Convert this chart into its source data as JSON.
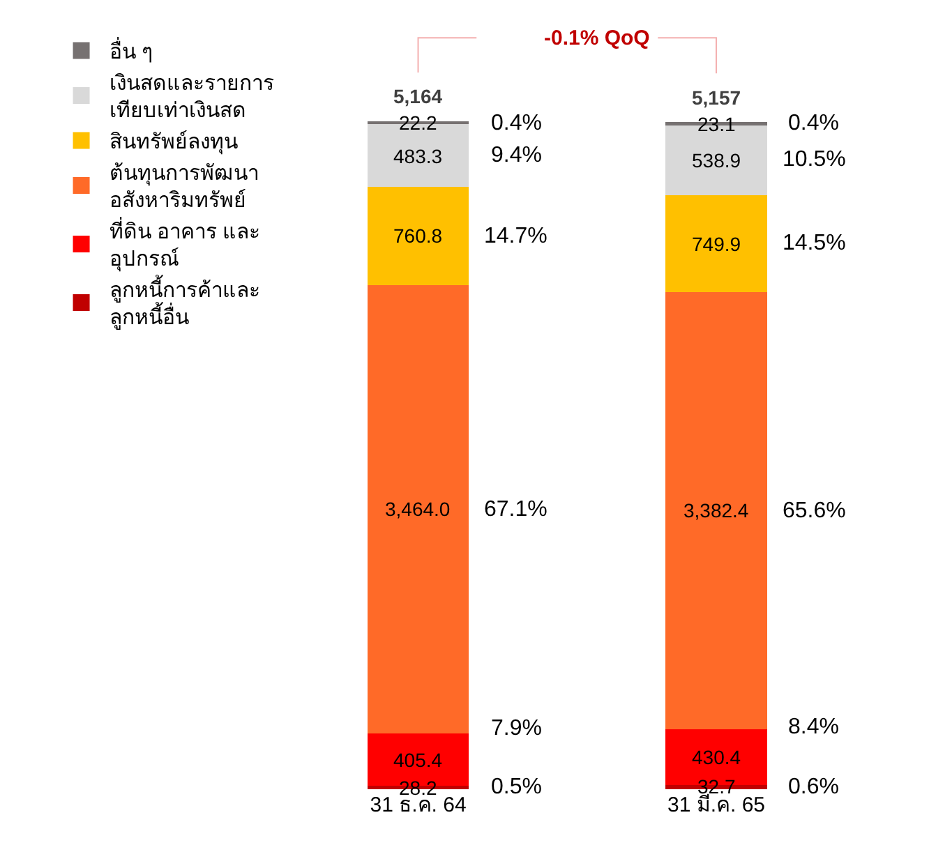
{
  "chart_data": {
    "type": "bar",
    "stacked": true,
    "categories": [
      "31 ธ.ค. 64",
      "31 มี.ค. 65"
    ],
    "series": [
      {
        "name": "ลูกหนี้การค้าและ\nลูกหนี้อื่น",
        "color": "#c00000",
        "values": [
          28.2,
          32.7
        ],
        "value_labels": [
          "28.2",
          "32.7"
        ]
      },
      {
        "name": "ที่ดิน อาคาร และ\nอุปกรณ์",
        "color": "#ff0000",
        "values": [
          405.4,
          430.4
        ],
        "value_labels": [
          "405.4",
          "430.4"
        ]
      },
      {
        "name": "ต้นทุนการพัฒนา\nอสังหาริมทรัพย์",
        "color": "#ff6a28",
        "values": [
          3464.0,
          3382.4
        ],
        "value_labels": [
          "3,464.0",
          "3,382.4"
        ]
      },
      {
        "name": "สินทรัพย์ลงทุน",
        "color": "#ffc000",
        "values": [
          760.8,
          749.9
        ],
        "value_labels": [
          "760.8",
          "749.9"
        ]
      },
      {
        "name": "เงินสดและรายการ\nเทียบเท่าเงินสด",
        "color": "#d9d9d9",
        "values": [
          483.3,
          538.9
        ],
        "value_labels": [
          "483.3",
          "538.9"
        ]
      },
      {
        "name": "อื่น ๆ",
        "color": "#767171",
        "values": [
          22.2,
          23.1
        ],
        "value_labels": [
          "22.2",
          "23.1"
        ]
      }
    ],
    "totals": [
      "5,164",
      "5,157"
    ],
    "tick_labels": "x",
    "legend": "left",
    "annotations": [
      "0.5%",
      "7.9%",
      "67.1%",
      "14.7%",
      "9.4%",
      "0.4%",
      "0.6%",
      "8.4%",
      "65.6%",
      "14.5%",
      "10.5%",
      "0.4%",
      "-0.1% QoQ"
    ]
  }
}
